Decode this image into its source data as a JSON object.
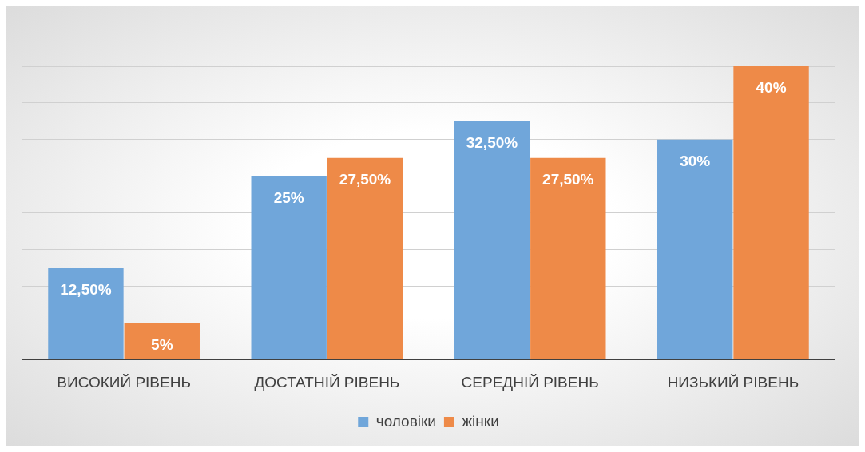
{
  "chart_data": {
    "type": "bar",
    "categories": [
      "ВИСОКИЙ РІВЕНЬ",
      "ДОСТАТНІЙ РІВЕНЬ",
      "СЕРЕДНІЙ РІВЕНЬ",
      "НИЗЬКИЙ РІВЕНЬ"
    ],
    "series": [
      {
        "name": "чоловіки",
        "color": "#70a6da",
        "values": [
          12.5,
          25,
          32.5,
          30
        ],
        "value_labels": [
          "12,50%",
          "25%",
          "32,50%",
          "30%"
        ]
      },
      {
        "name": "жінки",
        "color": "#ee8a48",
        "values": [
          5,
          27.5,
          27.5,
          40
        ],
        "value_labels": [
          "5%",
          "27,50%",
          "27,50%",
          "40%"
        ]
      }
    ],
    "ylim": [
      0,
      40
    ],
    "yticks": [
      {
        "value": 0,
        "label": null
      },
      {
        "value": 5,
        "label": null
      },
      {
        "value": 10,
        "label": null
      },
      {
        "value": 15,
        "label": null
      },
      {
        "value": 20,
        "label": null
      },
      {
        "value": 25,
        "label": null
      },
      {
        "value": 30,
        "label": null
      },
      {
        "value": 35,
        "label": null
      },
      {
        "value": 40,
        "label": null
      }
    ],
    "grid": "y",
    "tick_labels": "x",
    "legend": "bottom"
  }
}
